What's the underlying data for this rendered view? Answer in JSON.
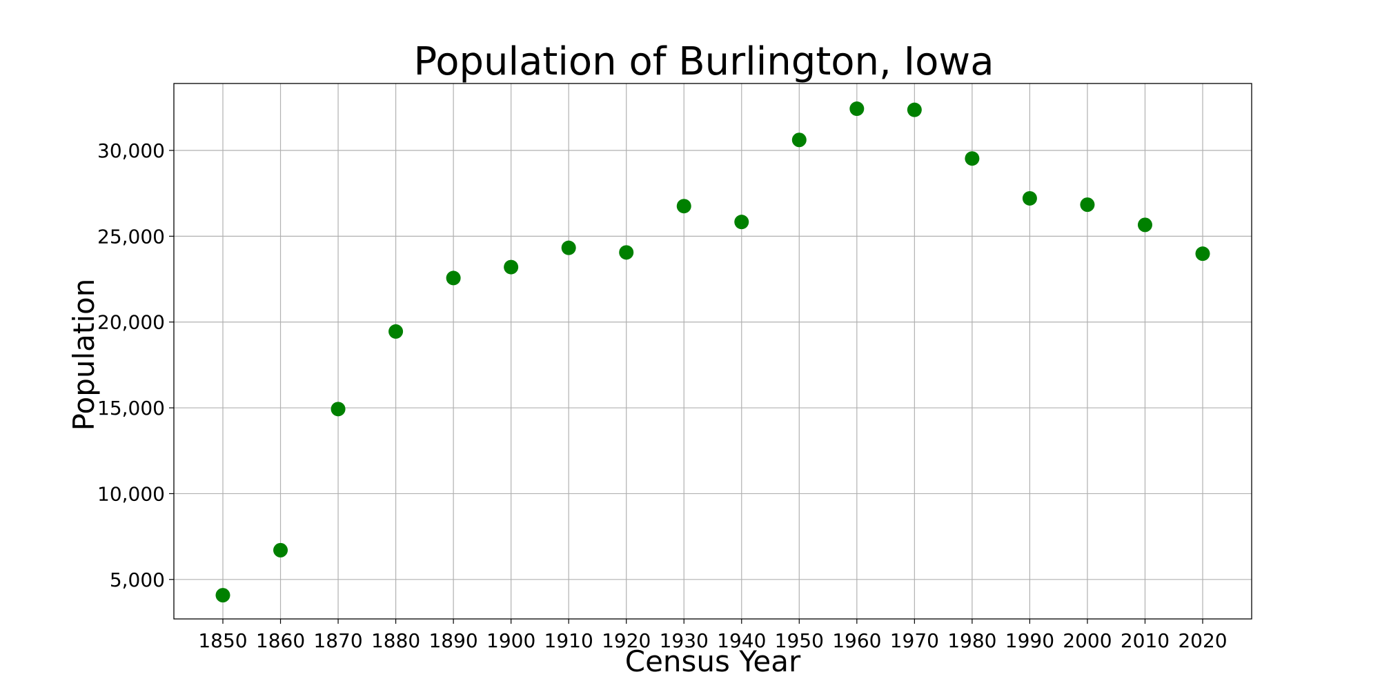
{
  "chart_data": {
    "type": "scatter",
    "title": "Population of Burlington, Iowa",
    "xlabel": "Census Year",
    "ylabel": "Population",
    "x": [
      1850,
      1860,
      1870,
      1880,
      1890,
      1900,
      1910,
      1920,
      1930,
      1940,
      1950,
      1960,
      1970,
      1980,
      1990,
      2000,
      2010,
      2020
    ],
    "series": [
      {
        "values": [
          4082,
          6706,
          14930,
          19450,
          22565,
          23201,
          24324,
          24057,
          26755,
          25832,
          30613,
          32430,
          32366,
          29529,
          27208,
          26839,
          25663,
          23982
        ],
        "color": "#008000"
      }
    ],
    "x_ticks": [
      "1850",
      "1860",
      "1870",
      "1880",
      "1890",
      "1900",
      "1910",
      "1920",
      "1930",
      "1940",
      "1950",
      "1960",
      "1970",
      "1980",
      "1990",
      "2000",
      "2010",
      "2020"
    ],
    "y_tick_values": [
      5000,
      10000,
      15000,
      20000,
      25000,
      30000
    ],
    "y_tick_labels": [
      "5,000",
      "10,000",
      "15,000",
      "20,000",
      "25,000",
      "30,000"
    ],
    "xlim": [
      1841.5,
      2028.5
    ],
    "ylim": [
      2700,
      33900
    ],
    "grid": true,
    "legend": "none"
  }
}
